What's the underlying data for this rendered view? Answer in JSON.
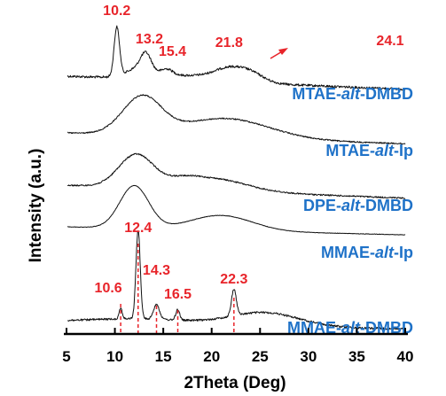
{
  "chart_data": {
    "type": "line",
    "title": "",
    "xlabel": "2Theta (Deg)",
    "ylabel": "Intensity (a.u.)",
    "xlim": [
      5,
      40
    ],
    "x_ticks": [
      5,
      10,
      15,
      20,
      25,
      30,
      35,
      40
    ],
    "colors": {
      "trace": "#111111",
      "annotation": "#e8242a",
      "series_label": "#1f72c8"
    },
    "series": [
      {
        "name": "MTAE-alt-DMBD",
        "label_parts": [
          "MTAE-",
          "alt",
          "-DMBD"
        ],
        "peaks": [
          {
            "x": 10.2,
            "label": "10.2"
          },
          {
            "x": 13.2,
            "label": "13.2"
          },
          {
            "x": 15.4,
            "label": "15.4"
          },
          {
            "x": 21.8,
            "label": "21.8"
          },
          {
            "x": 24.1,
            "label": "24.1"
          }
        ]
      },
      {
        "name": "MTAE-alt-Ip",
        "label_parts": [
          "MTAE-",
          "alt",
          "-Ip"
        ],
        "peaks": []
      },
      {
        "name": "DPE-alt-DMBD",
        "label_parts": [
          "DPE-",
          "alt",
          "-DMBD"
        ],
        "peaks": []
      },
      {
        "name": "MMAE-alt-Ip",
        "label_parts": [
          "MMAE-",
          "alt",
          "-Ip"
        ],
        "peaks": []
      },
      {
        "name": "MMAE-alt-DMBD",
        "label_parts": [
          "MMAE-",
          "alt",
          "-DMBD"
        ],
        "peaks": [
          {
            "x": 10.6,
            "label": "10.6"
          },
          {
            "x": 12.4,
            "label": "12.4"
          },
          {
            "x": 14.3,
            "label": "14.3"
          },
          {
            "x": 16.5,
            "label": "16.5"
          },
          {
            "x": 22.3,
            "label": "22.3"
          }
        ]
      }
    ]
  }
}
